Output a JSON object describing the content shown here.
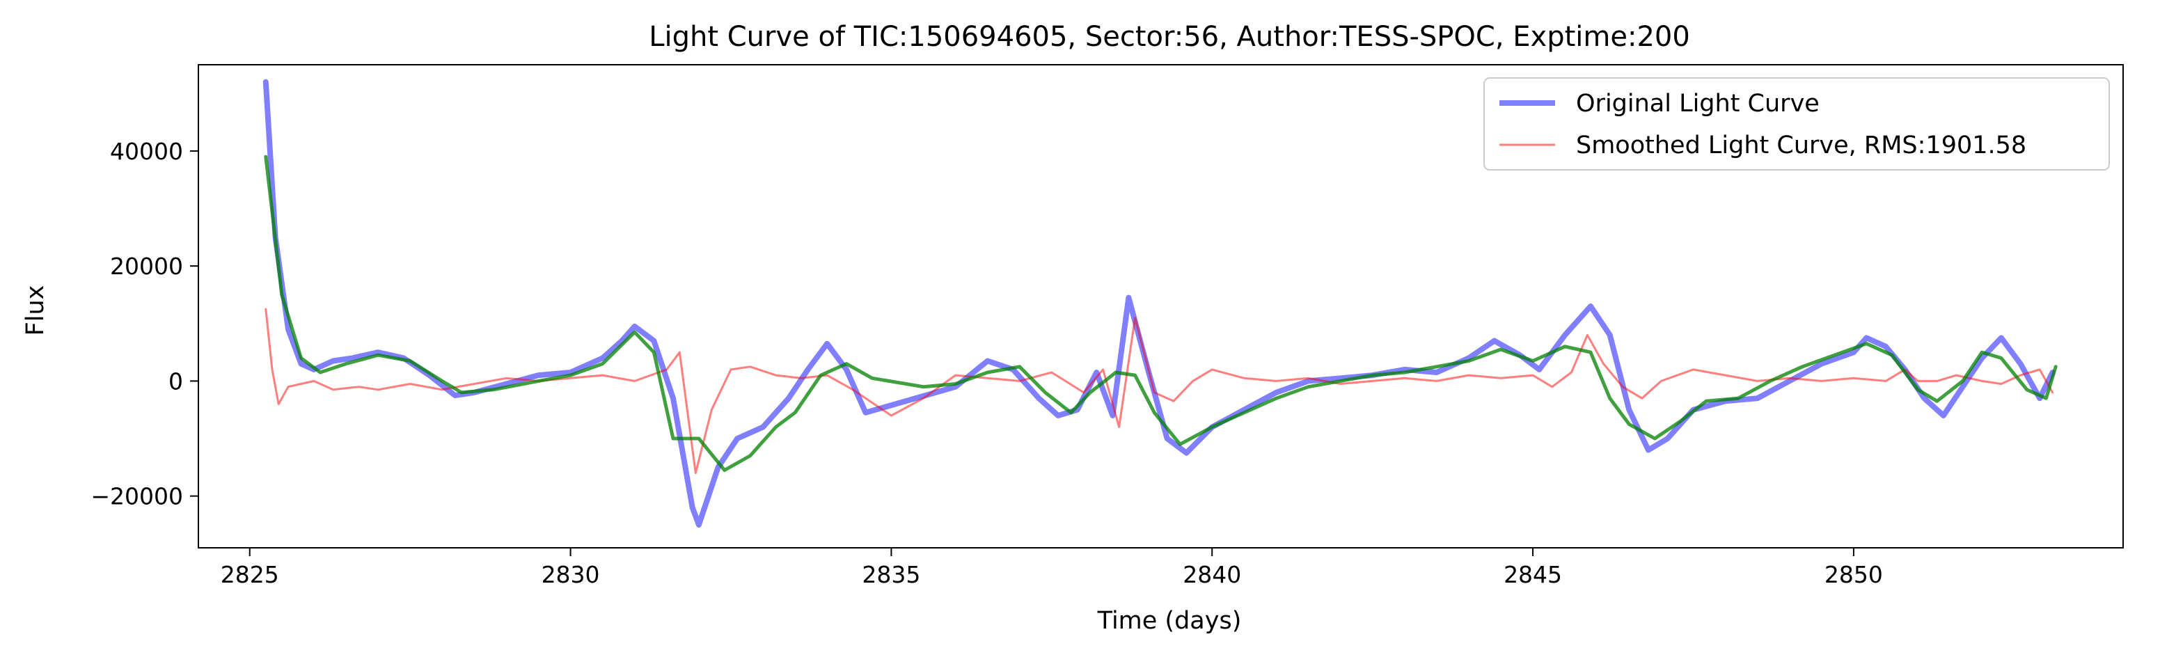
{
  "chart_data": {
    "type": "line",
    "title": "Light Curve of TIC:150694605, Sector:56, Author:TESS-SPOC, Exptime:200",
    "xlabel": "Time (days)",
    "ylabel": "Flux",
    "xlim": [
      2824.2,
      2854.2
    ],
    "ylim": [
      -29000,
      55000
    ],
    "xticks": [
      2825,
      2830,
      2835,
      2840,
      2845,
      2850
    ],
    "yticks": [
      -20000,
      0,
      20000,
      40000
    ],
    "grid": false,
    "legend_position": "top-right",
    "series": [
      {
        "name": "Original Light Curve",
        "color": "#0000ff",
        "opacity": 0.5,
        "x": [
          2825.25,
          2825.4,
          2825.6,
          2825.8,
          2826.0,
          2826.3,
          2826.6,
          2827.0,
          2827.4,
          2827.8,
          2828.2,
          2828.5,
          2829.0,
          2829.5,
          2830.0,
          2830.5,
          2830.8,
          2831.0,
          2831.3,
          2831.6,
          2831.9,
          2832.0,
          2832.3,
          2832.6,
          2833.0,
          2833.4,
          2833.7,
          2834.0,
          2834.3,
          2834.6,
          2836.0,
          2836.5,
          2836.9,
          2837.3,
          2837.6,
          2837.9,
          2838.2,
          2838.45,
          2838.7,
          2839.0,
          2839.3,
          2839.6,
          2840.0,
          2840.5,
          2841.0,
          2841.5,
          2842.0,
          2842.5,
          2843.0,
          2843.5,
          2844.0,
          2844.4,
          2844.8,
          2845.1,
          2845.5,
          2845.9,
          2846.2,
          2846.5,
          2846.8,
          2847.1,
          2847.5,
          2848.0,
          2848.5,
          2849.0,
          2849.5,
          2850.0,
          2850.2,
          2850.5,
          2850.8,
          2851.1,
          2851.4,
          2851.7,
          2852.0,
          2852.3,
          2852.6,
          2852.9,
          2853.1
        ],
        "y": [
          52000,
          25000,
          9000,
          3000,
          2000,
          3500,
          4000,
          5000,
          4000,
          1000,
          -2500,
          -2000,
          -500,
          1000,
          1500,
          4000,
          7000,
          9500,
          7000,
          -3000,
          -22000,
          -25000,
          -15000,
          -10000,
          -8000,
          -3000,
          2000,
          6500,
          2000,
          -5500,
          -1000,
          3500,
          2000,
          -3000,
          -6000,
          -5000,
          1500,
          -6000,
          14500,
          2000,
          -10000,
          -12500,
          -8000,
          -5000,
          -2000,
          0,
          500,
          1000,
          2000,
          1500,
          4000,
          7000,
          4500,
          2000,
          8000,
          13000,
          8000,
          -5000,
          -12000,
          -10000,
          -5000,
          -3500,
          -3000,
          0,
          3000,
          5000,
          7500,
          6000,
          2000,
          -3000,
          -6000,
          -1000,
          4000,
          7500,
          3000,
          -3000,
          1500
        ]
      },
      {
        "name": "Smoothed Light Curve, RMS:1901.58",
        "color": "#ff0000",
        "opacity": 0.5,
        "x": [
          2825.25,
          2825.35,
          2825.45,
          2825.6,
          2825.8,
          2826.0,
          2826.3,
          2826.7,
          2827.0,
          2827.5,
          2828.0,
          2828.5,
          2829.0,
          2829.5,
          2830.0,
          2830.5,
          2831.0,
          2831.5,
          2831.7,
          2831.95,
          2832.2,
          2832.5,
          2832.8,
          2833.2,
          2833.6,
          2834.0,
          2834.4,
          2835.0,
          2835.5,
          2836.0,
          2836.5,
          2837.0,
          2837.5,
          2838.0,
          2838.3,
          2838.55,
          2838.8,
          2839.1,
          2839.4,
          2839.7,
          2840.0,
          2840.5,
          2841.0,
          2841.5,
          2842.0,
          2842.5,
          2843.0,
          2843.5,
          2844.0,
          2844.5,
          2845.0,
          2845.3,
          2845.6,
          2845.85,
          2846.1,
          2846.4,
          2846.7,
          2847.0,
          2847.5,
          2848.0,
          2848.5,
          2849.0,
          2849.5,
          2850.0,
          2850.5,
          2850.8,
          2851.0,
          2851.3,
          2851.6,
          2852.0,
          2852.3,
          2852.6,
          2852.9,
          2853.1
        ],
        "y": [
          12500,
          2000,
          -4000,
          -1000,
          -500,
          0,
          -1500,
          -1000,
          -1500,
          -500,
          -1500,
          -500,
          500,
          0,
          500,
          1000,
          0,
          2000,
          5000,
          -16000,
          -5000,
          2000,
          2500,
          1000,
          500,
          1000,
          -1500,
          -6000,
          -3000,
          1000,
          500,
          0,
          1500,
          -2000,
          2000,
          -8000,
          11000,
          -2000,
          -3500,
          0,
          2000,
          500,
          0,
          500,
          -500,
          0,
          500,
          0,
          1000,
          500,
          1000,
          -1000,
          1500,
          8000,
          3000,
          -1000,
          -3000,
          0,
          2000,
          1000,
          0,
          500,
          0,
          500,
          0,
          2000,
          0,
          0,
          1000,
          0,
          -500,
          1000,
          2000,
          -2000
        ]
      },
      {
        "name": "",
        "color": "#008000",
        "opacity": 0.75,
        "x": [
          2825.25,
          2825.5,
          2825.8,
          2826.1,
          2826.5,
          2827.0,
          2827.5,
          2828.0,
          2828.3,
          2828.8,
          2829.5,
          2830.0,
          2830.5,
          2831.0,
          2831.3,
          2831.6,
          2832.0,
          2832.4,
          2832.8,
          2833.2,
          2833.5,
          2833.9,
          2834.3,
          2834.7,
          2835.5,
          2836.0,
          2836.5,
          2837.0,
          2837.4,
          2837.8,
          2838.1,
          2838.5,
          2838.8,
          2839.1,
          2839.5,
          2840.0,
          2840.5,
          2841.0,
          2841.5,
          2842.0,
          2842.5,
          2843.0,
          2843.5,
          2844.0,
          2844.5,
          2845.0,
          2845.5,
          2845.9,
          2846.2,
          2846.5,
          2846.9,
          2847.3,
          2847.7,
          2848.2,
          2848.7,
          2849.2,
          2849.7,
          2850.2,
          2850.6,
          2851.0,
          2851.3,
          2851.7,
          2852.0,
          2852.3,
          2852.7,
          2853.0,
          2853.15
        ],
        "y": [
          39000,
          15000,
          4000,
          1500,
          3000,
          4500,
          3500,
          0,
          -2000,
          -1500,
          0,
          1000,
          3000,
          8500,
          5000,
          -10000,
          -10000,
          -15500,
          -13000,
          -8000,
          -5500,
          1000,
          3000,
          500,
          -1000,
          -500,
          1500,
          2500,
          -2000,
          -5500,
          -2000,
          1500,
          1000,
          -5500,
          -11000,
          -8000,
          -5500,
          -3000,
          -1000,
          0,
          1000,
          1500,
          2500,
          3500,
          5500,
          3500,
          6000,
          5000,
          -3000,
          -7500,
          -10000,
          -7000,
          -3500,
          -3000,
          0,
          2500,
          4500,
          6500,
          4500,
          -1500,
          -3500,
          0,
          5000,
          4000,
          -1500,
          -3000,
          2500
        ]
      }
    ]
  }
}
